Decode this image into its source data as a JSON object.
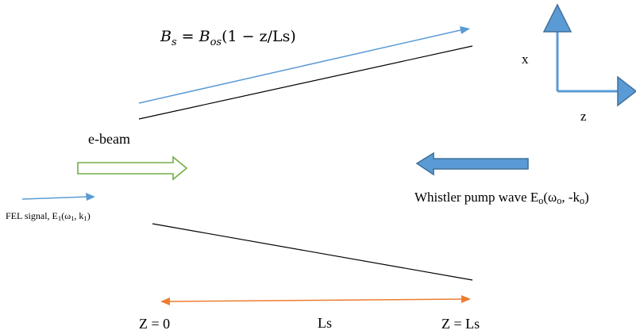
{
  "equation": {
    "lhs_symbol": "B",
    "lhs_sub": "s",
    "equals": " = ",
    "rhs_symbol": "B",
    "rhs_sub": "os",
    "rhs_rest": "(1 − z/Ls)"
  },
  "axes": {
    "x_label": "x",
    "z_label": "z"
  },
  "ebeam_label": "e-beam",
  "pump": {
    "label_prefix": "Whistler pump wave E",
    "label_sub1": "o",
    "label_open": "(ω",
    "label_sub2": "o",
    "label_mid": ", -k",
    "label_sub3": "o",
    "label_close": ")"
  },
  "signal": {
    "label_prefix": "FEL signal, E",
    "label_sub1": "1",
    "label_open": "(ω",
    "label_sub2": "1",
    "label_mid": ", k",
    "label_sub3": "1",
    "label_close": ")"
  },
  "bottom": {
    "z0_label": "Z = 0",
    "length_label": "Ls",
    "zl_label": "Z = Ls"
  },
  "colors": {
    "field_arrow": "#5b9bd5",
    "beam_outline": "#70ad47",
    "pump_fill": "#5b9bd5",
    "pump_stroke": "#41719c",
    "length_arrow": "#ed7d31",
    "lines": "#000000"
  }
}
